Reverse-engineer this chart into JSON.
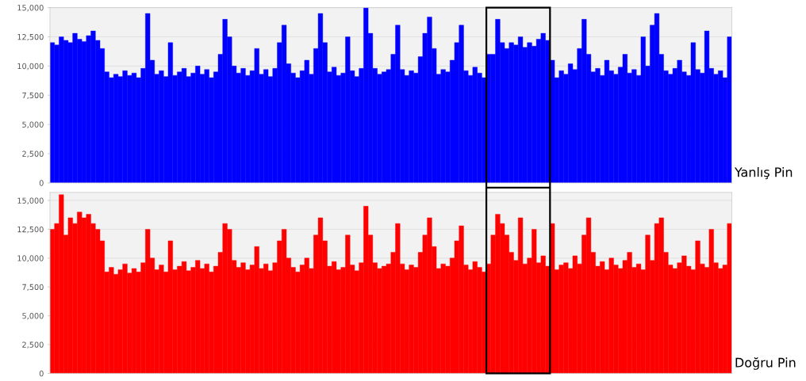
{
  "chart_data": [
    {
      "type": "bar",
      "categories": [
        null,
        null,
        null,
        null,
        null,
        null,
        null,
        null,
        null,
        null,
        null,
        null,
        null,
        null,
        null,
        null,
        null,
        null,
        null,
        null,
        null,
        null,
        null,
        null,
        null,
        null,
        null,
        null,
        null,
        null,
        null,
        null,
        null,
        null,
        null,
        null,
        null,
        null,
        null,
        null,
        null,
        null,
        null,
        null,
        null,
        null,
        null,
        null,
        null,
        null,
        null,
        null,
        null,
        null,
        null,
        null,
        null,
        null,
        null,
        null,
        null,
        null,
        null,
        null,
        null,
        null,
        null,
        null,
        null,
        null,
        null,
        null,
        null,
        null,
        null,
        null,
        null,
        null,
        null,
        null,
        null,
        null,
        null,
        null,
        null,
        null,
        null,
        null,
        null,
        null,
        null,
        null,
        null,
        null,
        null,
        null,
        null,
        null,
        null,
        null,
        null,
        null,
        null,
        null,
        null,
        null,
        null,
        null,
        null,
        null,
        null,
        null,
        null,
        null,
        null,
        null,
        null,
        null,
        null,
        null,
        null,
        null,
        null,
        null,
        null,
        null,
        null,
        null,
        null,
        null,
        null,
        null,
        null,
        null,
        null,
        null,
        null,
        null,
        null,
        null,
        null,
        null,
        null,
        null,
        null,
        null,
        null,
        null,
        null,
        null
      ],
      "series": [
        {
          "name": "Yanlış Pin",
          "color": "#0000ff",
          "values": [
            12000,
            11800,
            12500,
            12200,
            12000,
            12800,
            12300,
            12100,
            12600,
            13000,
            12200,
            11500,
            9500,
            9000,
            9300,
            9100,
            9600,
            9200,
            9400,
            9000,
            9800,
            14500,
            10500,
            9300,
            9600,
            9100,
            12000,
            9200,
            9500,
            9800,
            9100,
            9400,
            10000,
            9300,
            9700,
            9000,
            9500,
            11000,
            14000,
            12500,
            10000,
            9400,
            9800,
            9200,
            9600,
            11500,
            9300,
            9700,
            9100,
            9800,
            12000,
            13500,
            10200,
            9400,
            9000,
            9600,
            10500,
            9300,
            11500,
            14500,
            12000,
            9500,
            9900,
            9200,
            9400,
            12500,
            9600,
            9100,
            9800,
            15000,
            12800,
            9800,
            9300,
            9500,
            9700,
            11000,
            13500,
            9700,
            9200,
            9600,
            9400,
            10800,
            12800,
            14200,
            11500,
            9300,
            9700,
            9500,
            10500,
            12000,
            13500,
            9600,
            9200,
            9900,
            9400,
            9000,
            11000,
            11000,
            14000,
            12000,
            11500,
            12000,
            11800,
            12500,
            11600,
            12000,
            11700,
            12300,
            12800,
            12200,
            10500,
            9000,
            9600,
            9300,
            10200,
            9700,
            11500,
            14000,
            11000,
            9500,
            9800,
            9200,
            10500,
            9600,
            9300,
            9900,
            11000,
            9400,
            9700,
            9200,
            12500,
            10000,
            13500,
            14500,
            11000,
            9600,
            9300,
            9800,
            10500,
            9500,
            9200,
            12000,
            9700,
            9400,
            13000,
            9800,
            9300,
            9600,
            9000,
            12500
          ]
        }
      ],
      "ylim": [
        0,
        15000
      ],
      "yticks": [
        {
          "value": 0,
          "label": "0"
        },
        {
          "value": 2500,
          "label": "2,500"
        },
        {
          "value": 5000,
          "label": "5,000"
        },
        {
          "value": 7500,
          "label": "7,500"
        },
        {
          "value": 10000,
          "label": "10,000"
        },
        {
          "value": 12500,
          "label": "12,500"
        },
        {
          "value": 15000,
          "label": "15,000"
        }
      ],
      "grid": "y",
      "tick_labels": "y"
    },
    {
      "type": "bar",
      "categories": [
        null,
        null,
        null,
        null,
        null,
        null,
        null,
        null,
        null,
        null,
        null,
        null,
        null,
        null,
        null,
        null,
        null,
        null,
        null,
        null,
        null,
        null,
        null,
        null,
        null,
        null,
        null,
        null,
        null,
        null,
        null,
        null,
        null,
        null,
        null,
        null,
        null,
        null,
        null,
        null,
        null,
        null,
        null,
        null,
        null,
        null,
        null,
        null,
        null,
        null,
        null,
        null,
        null,
        null,
        null,
        null,
        null,
        null,
        null,
        null,
        null,
        null,
        null,
        null,
        null,
        null,
        null,
        null,
        null,
        null,
        null,
        null,
        null,
        null,
        null,
        null,
        null,
        null,
        null,
        null,
        null,
        null,
        null,
        null,
        null,
        null,
        null,
        null,
        null,
        null,
        null,
        null,
        null,
        null,
        null,
        null,
        null,
        null,
        null,
        null,
        null,
        null,
        null,
        null,
        null,
        null,
        null,
        null,
        null,
        null,
        null,
        null,
        null,
        null,
        null,
        null,
        null,
        null,
        null,
        null,
        null,
        null,
        null,
        null,
        null,
        null,
        null,
        null,
        null,
        null,
        null,
        null,
        null,
        null,
        null,
        null,
        null,
        null,
        null,
        null,
        null,
        null,
        null,
        null,
        null,
        null,
        null,
        null,
        null,
        null
      ],
      "series": [
        {
          "name": "Doğru Pin",
          "color": "#ff0000",
          "values": [
            12500,
            13000,
            15500,
            12000,
            13500,
            13000,
            14000,
            13500,
            13800,
            13000,
            12500,
            11500,
            8800,
            9200,
            8600,
            9000,
            9500,
            8700,
            9100,
            8800,
            9600,
            12500,
            10000,
            9000,
            9400,
            8800,
            11500,
            9000,
            9300,
            9700,
            8900,
            9200,
            9800,
            9100,
            9500,
            8800,
            9300,
            10500,
            13000,
            12500,
            9800,
            9200,
            9600,
            9000,
            9400,
            11000,
            9100,
            9500,
            8900,
            9600,
            11500,
            12500,
            10000,
            9200,
            8800,
            9400,
            10000,
            9100,
            12000,
            13500,
            11500,
            9300,
            9700,
            9000,
            9200,
            12000,
            9400,
            8900,
            9600,
            14500,
            12000,
            9600,
            9100,
            9300,
            9500,
            10500,
            13000,
            9500,
            9000,
            9400,
            9200,
            10500,
            12000,
            13500,
            11000,
            9100,
            9500,
            9300,
            10000,
            11500,
            12800,
            9400,
            9000,
            9700,
            9200,
            8800,
            9500,
            12000,
            13800,
            13000,
            12000,
            10500,
            9800,
            13500,
            9500,
            10000,
            12500,
            9600,
            10200,
            9300,
            13000,
            9000,
            9400,
            9600,
            9100,
            10200,
            9500,
            12000,
            13500,
            10500,
            9300,
            9700,
            9000,
            10000,
            9400,
            9100,
            9800,
            10500,
            9200,
            9500,
            9000,
            12000,
            9800,
            13000,
            13500,
            10500,
            9400,
            9100,
            9600,
            10200,
            9300,
            9000,
            11500,
            9500,
            9200,
            12500,
            9600,
            9100,
            9400,
            13000
          ]
        }
      ],
      "ylim": [
        0,
        15700
      ],
      "yticks": [
        {
          "value": 0,
          "label": "0"
        },
        {
          "value": 2500,
          "label": "2,500"
        },
        {
          "value": 5000,
          "label": "5,000"
        },
        {
          "value": 7500,
          "label": "7,500"
        },
        {
          "value": 10000,
          "label": "10,000"
        },
        {
          "value": 12500,
          "label": "12,500"
        },
        {
          "value": 15000,
          "label": "15,000"
        }
      ],
      "grid": "y",
      "tick_labels": "y"
    }
  ]
}
